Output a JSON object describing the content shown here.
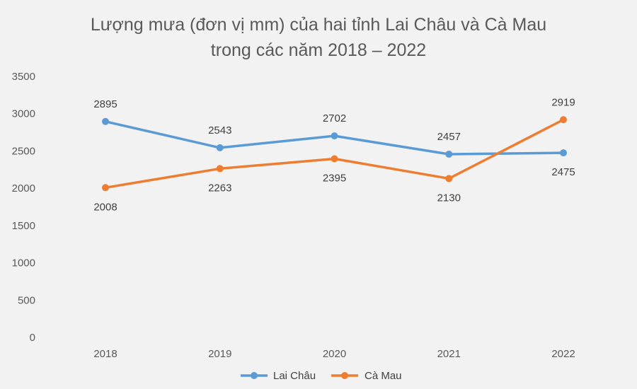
{
  "chart_data": {
    "type": "line",
    "title": "Lượng mưa (đơn vị mm) của hai tỉnh Lai Châu và Cà Mau",
    "subtitle": "trong các năm 2018 – 2022",
    "xlabel": "",
    "ylabel": "",
    "categories": [
      "2018",
      "2019",
      "2020",
      "2021",
      "2022"
    ],
    "ylim": [
      0,
      3500
    ],
    "yticks": [
      0,
      500,
      1000,
      1500,
      2000,
      2500,
      3000,
      3500
    ],
    "grid": false,
    "legend_position": "bottom",
    "series": [
      {
        "name": "Lai Châu",
        "color": "#5b9bd5",
        "values": [
          2895,
          2543,
          2702,
          2457,
          2475
        ]
      },
      {
        "name": "Cà Mau",
        "color": "#ed7d31",
        "values": [
          2008,
          2263,
          2395,
          2130,
          2919
        ]
      }
    ]
  }
}
